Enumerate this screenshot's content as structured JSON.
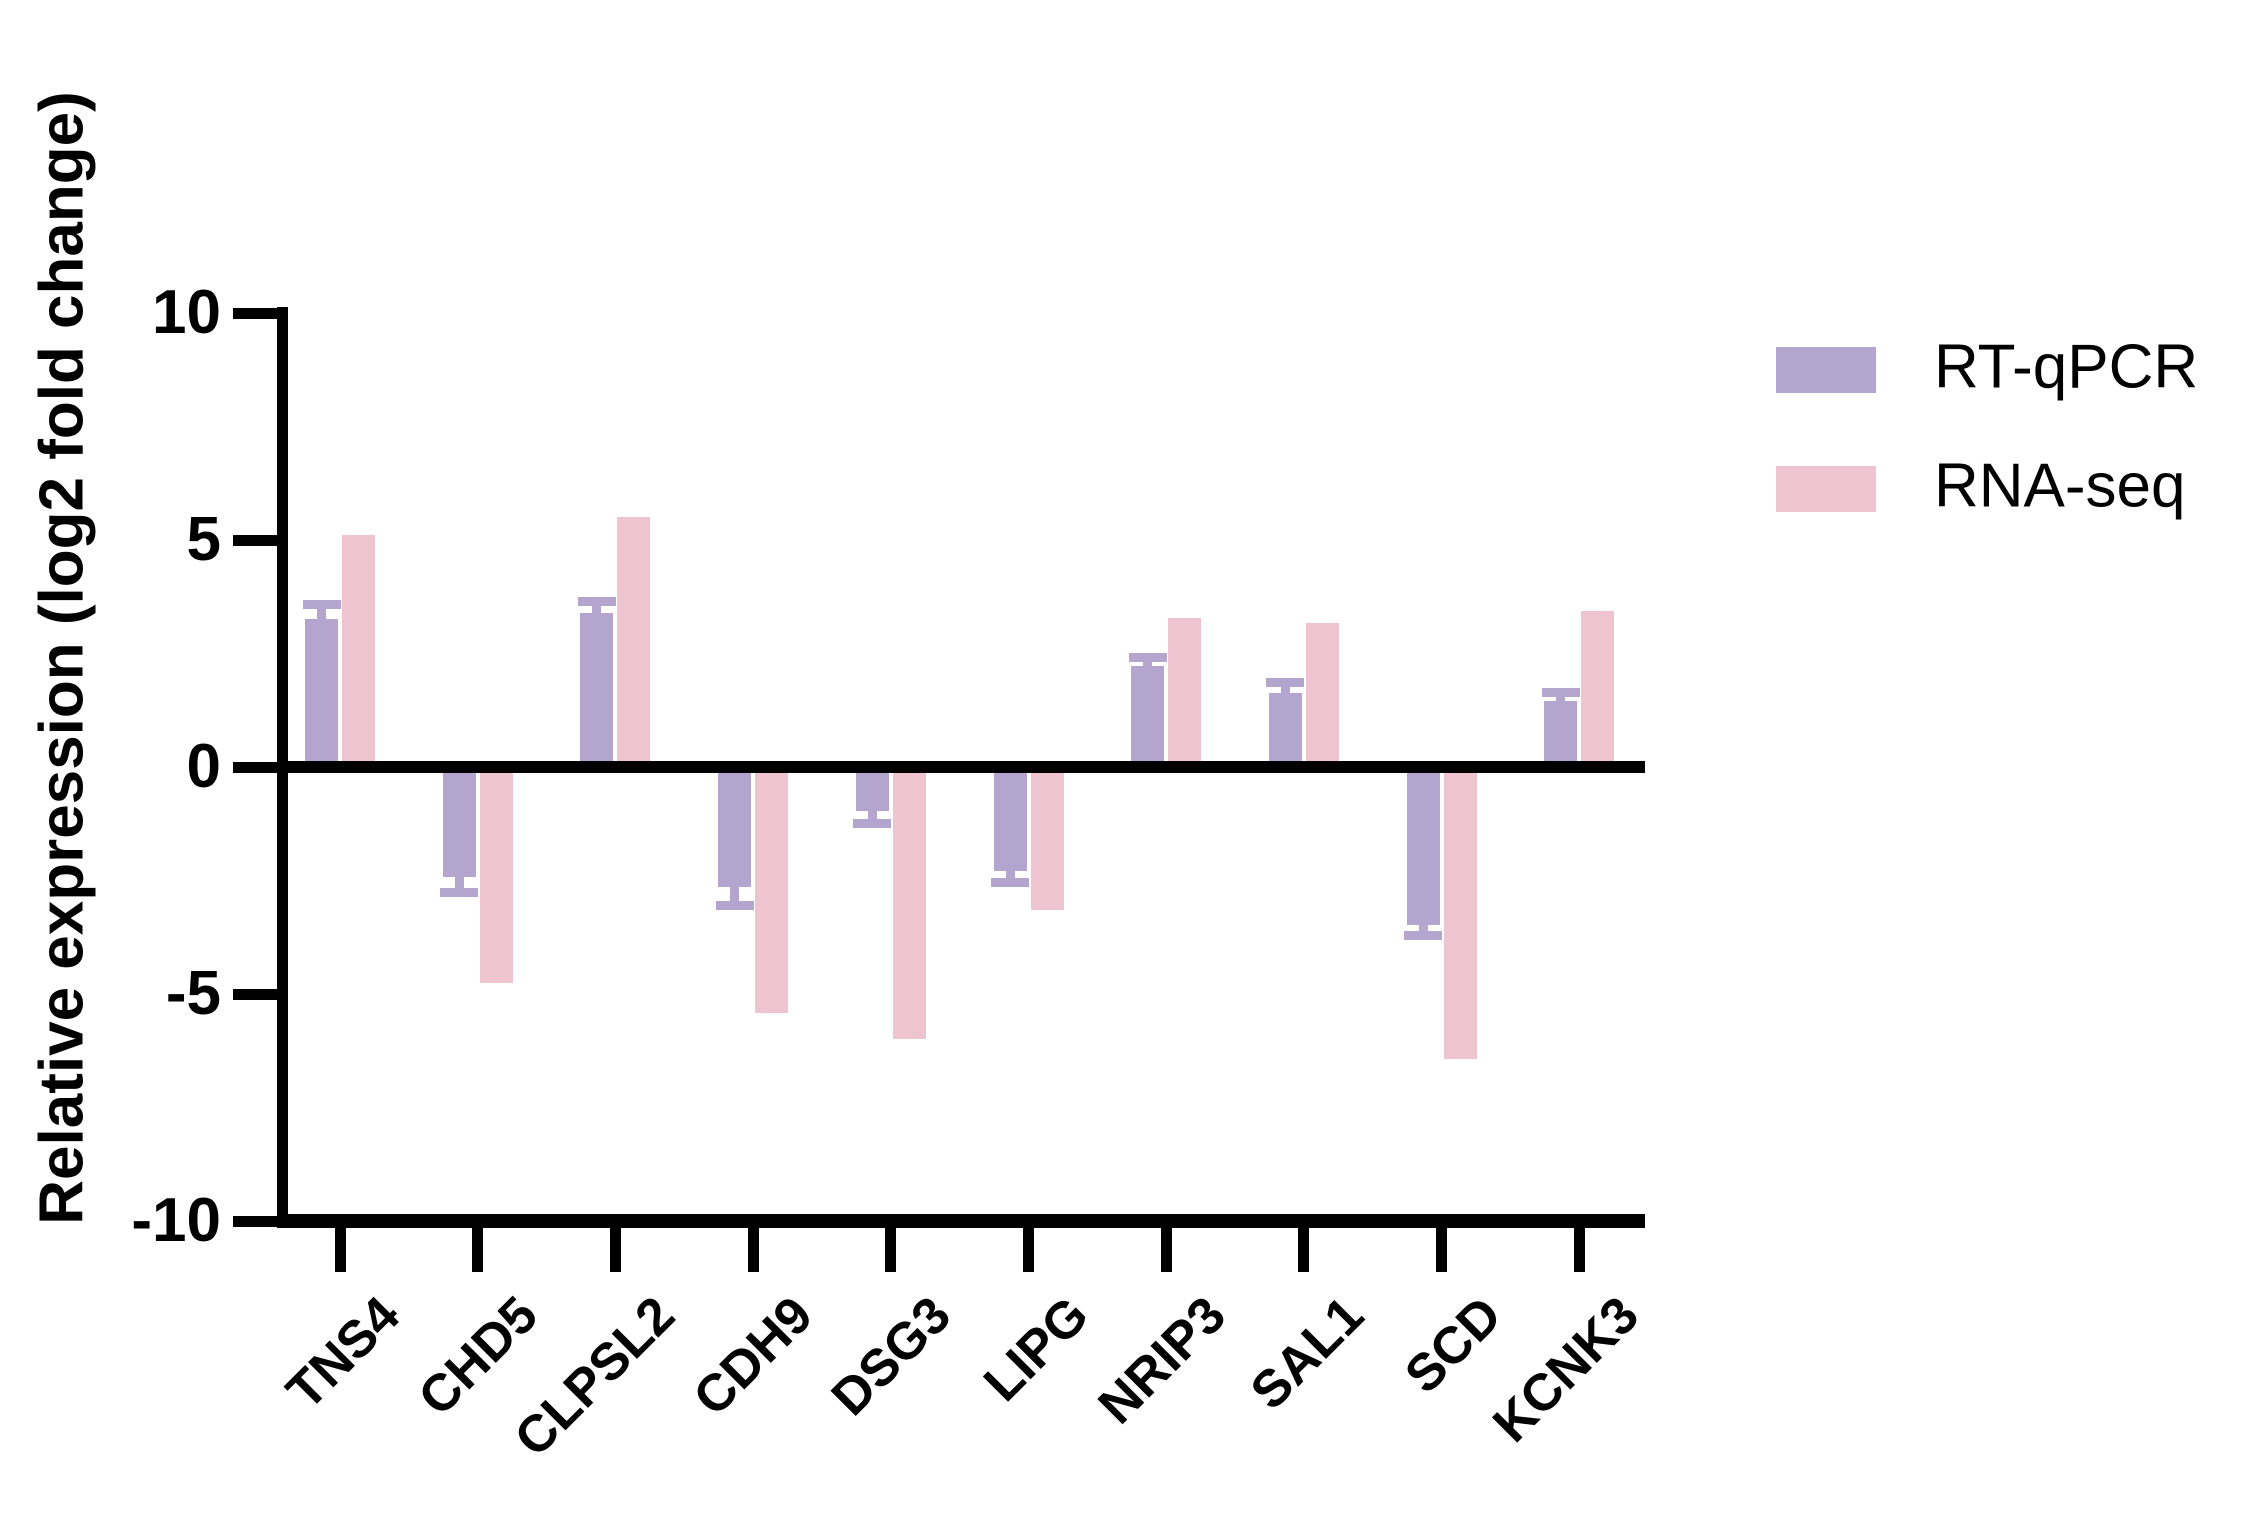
{
  "chart_data": {
    "type": "bar",
    "title": "",
    "ylabel": "Relative expression (log2 fold change)",
    "xlabel": "",
    "ylim": [
      -10,
      10
    ],
    "yticks": [
      10,
      5,
      0,
      -5,
      -10
    ],
    "categories": [
      "TNS4",
      "CHD5",
      "CLPSL2",
      "CDH9",
      "DSG3",
      "LIPG",
      "NRIP3",
      "SAL1",
      "SCD",
      "KCNK3"
    ],
    "series": [
      {
        "name": "RT-qPCR",
        "color": "#b3a5ce",
        "values": [
          3.26,
          -2.42,
          3.4,
          -2.64,
          -0.97,
          -2.29,
          2.23,
          1.63,
          -3.48,
          1.45
        ],
        "errors": [
          0.26,
          0.3,
          0.18,
          0.35,
          0.22,
          0.2,
          0.13,
          0.18,
          0.17,
          0.14
        ]
      },
      {
        "name": "RNA-seq",
        "color": "#eec4d1",
        "values": [
          5.11,
          -4.76,
          5.51,
          -5.42,
          -5.99,
          -3.15,
          3.28,
          3.17,
          -6.43,
          3.44
        ],
        "errors": null
      }
    ],
    "legend_position": "upper right",
    "grid": false,
    "axis_color": "#000000",
    "background": "#ffffff"
  }
}
